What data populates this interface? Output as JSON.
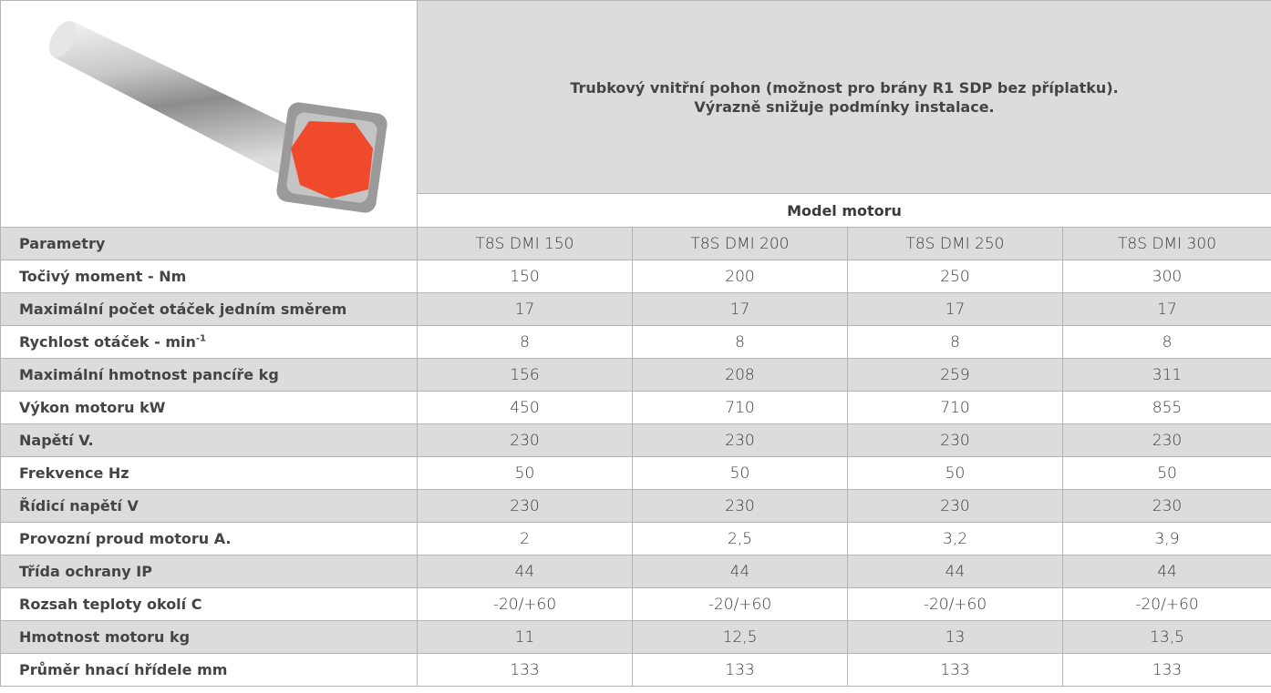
{
  "header": {
    "description": [
      "Trubkový vnitřní pohon (možnost pro brány R1 SDP bez příplatku).",
      "Výrazně snižuje podmínky instalace."
    ],
    "model_label": "Model motoru"
  },
  "table": {
    "columns": [
      "Parametry",
      "T8S DMI 150",
      "T8S DMI 200",
      "T8S DMI 250",
      "T8S DMI 300"
    ],
    "rows": [
      {
        "label": "Točivý moment - Nm",
        "values": [
          "150",
          "200",
          "250",
          "300"
        ]
      },
      {
        "label": "Maximální počet otáček jedním směrem",
        "values": [
          "17",
          "17",
          "17",
          "17"
        ]
      },
      {
        "label": "Rychlost otáček - min",
        "sup": "-1",
        "values": [
          "8",
          "8",
          "8",
          "8"
        ]
      },
      {
        "label": "Maximální hmotnost pancíře kg",
        "values": [
          "156",
          "208",
          "259",
          "311"
        ]
      },
      {
        "label": "Výkon motoru kW",
        "values": [
          "450",
          "710",
          "710",
          "855"
        ]
      },
      {
        "label": "Napětí V.",
        "values": [
          "230",
          "230",
          "230",
          "230"
        ]
      },
      {
        "label": "Frekvence Hz",
        "values": [
          "50",
          "50",
          "50",
          "50"
        ]
      },
      {
        "label": "Řídicí napětí V",
        "values": [
          "230",
          "230",
          "230",
          "230"
        ]
      },
      {
        "label": "Provozní proud motoru A.",
        "values": [
          "2",
          "2,5",
          "3,2",
          "3,9"
        ]
      },
      {
        "label": "Třída ochrany IP",
        "values": [
          "44",
          "44",
          "44",
          "44"
        ]
      },
      {
        "label": "Rozsah teploty okolí C",
        "values": [
          "-20/+60",
          "-20/+60",
          "-20/+60",
          "-20/+60"
        ]
      },
      {
        "label": "Hmotnost motoru kg",
        "values": [
          "11",
          "12,5",
          "13",
          "13,5"
        ]
      },
      {
        "label": "Průměr hnací hřídele mm",
        "values": [
          "133",
          "133",
          "133",
          "133"
        ]
      }
    ]
  }
}
